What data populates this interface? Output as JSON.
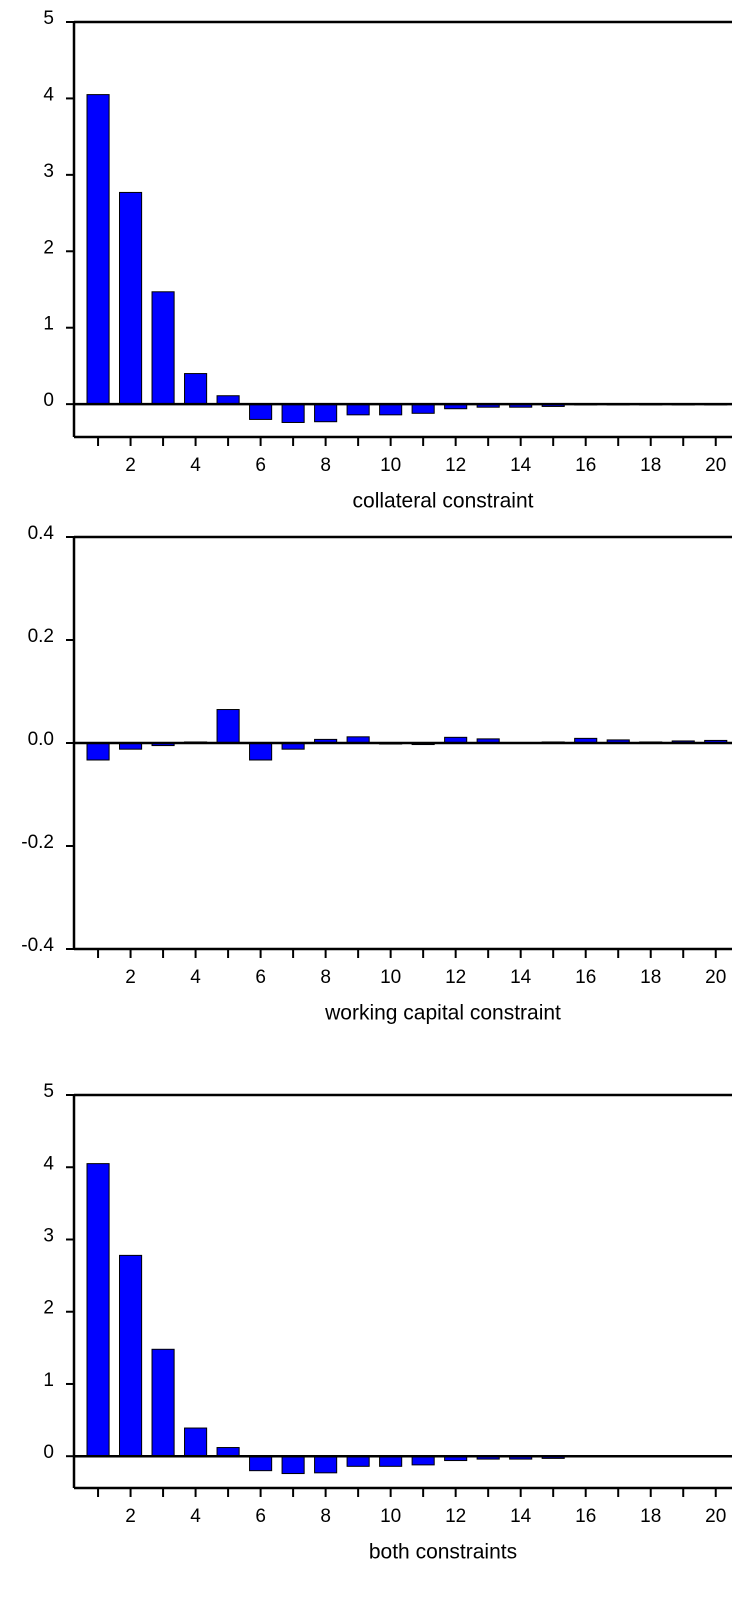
{
  "chart_data": [
    {
      "type": "bar",
      "xlabel": "collateral constraint",
      "x": [
        1,
        2,
        3,
        4,
        5,
        6,
        7,
        8,
        9,
        10,
        11,
        12,
        13,
        14,
        15,
        16,
        17,
        18,
        19,
        20
      ],
      "values": [
        4.05,
        2.77,
        1.47,
        0.4,
        0.11,
        -0.2,
        -0.24,
        -0.23,
        -0.14,
        -0.14,
        -0.12,
        -0.06,
        -0.04,
        -0.04,
        -0.03,
        -0.01,
        -0.01,
        -0.01,
        -0.01,
        -0.01
      ],
      "color": "#0000ff",
      "xlim": [
        0.26,
        20.5
      ],
      "xticks": [
        2,
        4,
        6,
        8,
        10,
        12,
        14,
        16,
        18,
        20
      ],
      "ylim": [
        -0.43,
        5
      ],
      "yticks": [
        0,
        1,
        2,
        3,
        4,
        5
      ]
    },
    {
      "type": "bar",
      "xlabel": "working capital constraint",
      "x": [
        1,
        2,
        3,
        4,
        5,
        6,
        7,
        8,
        9,
        10,
        11,
        12,
        13,
        14,
        15,
        16,
        17,
        18,
        19,
        20
      ],
      "values": [
        -0.033,
        -0.012,
        -0.005,
        0.002,
        0.065,
        -0.033,
        -0.012,
        0.007,
        0.012,
        -0.002,
        -0.003,
        0.011,
        0.008,
        -0.001,
        0.002,
        0.009,
        0.006,
        0.002,
        0.004,
        0.005
      ],
      "color": "#0000ff",
      "xlim": [
        0.26,
        20.5
      ],
      "xticks": [
        2,
        4,
        6,
        8,
        10,
        12,
        14,
        16,
        18,
        20
      ],
      "ylim": [
        -0.4,
        0.4
      ],
      "yticks": [
        -0.4,
        -0.2,
        {
          "value": 0,
          "label": "0.0"
        },
        0.2,
        0.4
      ]
    },
    {
      "type": "bar",
      "xlabel": "both constraints",
      "x": [
        1,
        2,
        3,
        4,
        5,
        6,
        7,
        8,
        9,
        10,
        11,
        12,
        13,
        14,
        15,
        16,
        17,
        18,
        19,
        20
      ],
      "values": [
        4.05,
        2.78,
        1.48,
        0.39,
        0.12,
        -0.2,
        -0.24,
        -0.23,
        -0.14,
        -0.14,
        -0.12,
        -0.06,
        -0.04,
        -0.04,
        -0.03,
        -0.01,
        -0.01,
        -0.01,
        -0.01,
        -0.01
      ],
      "color": "#0000ff",
      "xlim": [
        0.26,
        20.5
      ],
      "xticks": [
        2,
        4,
        6,
        8,
        10,
        12,
        14,
        16,
        18,
        20
      ],
      "ylim": [
        -0.44,
        5
      ],
      "yticks": [
        0,
        1,
        2,
        3,
        4,
        5
      ]
    }
  ]
}
